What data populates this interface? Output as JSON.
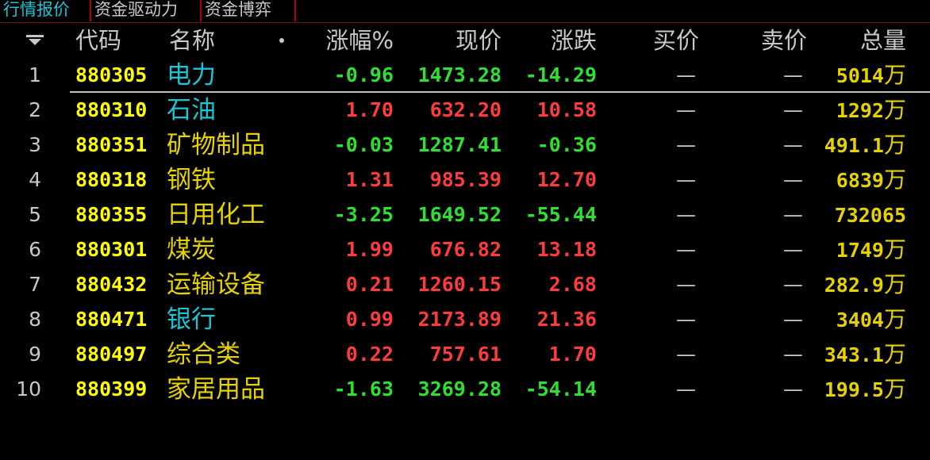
{
  "colors": {
    "up": "#ff3c3c",
    "down": "#30e030",
    "code": "#ffff00",
    "active_tab": "#19c6d6",
    "tab_border": "#b00000"
  },
  "tabs": [
    {
      "label": "行情报价",
      "active": true
    },
    {
      "label": "资金驱动力",
      "active": false
    },
    {
      "label": "资金博弈",
      "active": false
    }
  ],
  "header": {
    "sort_icon": "sort-down-icon",
    "code": "代码",
    "name": "名称",
    "pct": "涨幅%",
    "price": "现价",
    "change": "涨跌",
    "buy": "买价",
    "sell": "卖价",
    "volume": "总量"
  },
  "rows": [
    {
      "idx": "1",
      "code": "880305",
      "name": "电力",
      "name_color": "cyan",
      "pct": "-0.96",
      "price": "1473.28",
      "change": "-14.29",
      "buy": "—",
      "sell": "—",
      "vol": "5014",
      "unit": "万",
      "dir": "down",
      "selected": true
    },
    {
      "idx": "2",
      "code": "880310",
      "name": "石油",
      "name_color": "cyan",
      "pct": "1.70",
      "price": "632.20",
      "change": "10.58",
      "buy": "—",
      "sell": "—",
      "vol": "1292",
      "unit": "万",
      "dir": "up"
    },
    {
      "idx": "3",
      "code": "880351",
      "name": "矿物制品",
      "name_color": "yellow",
      "pct": "-0.03",
      "price": "1287.41",
      "change": "-0.36",
      "buy": "—",
      "sell": "—",
      "vol": "491.1",
      "unit": "万",
      "dir": "down"
    },
    {
      "idx": "4",
      "code": "880318",
      "name": "钢铁",
      "name_color": "yellow",
      "pct": "1.31",
      "price": "985.39",
      "change": "12.70",
      "buy": "—",
      "sell": "—",
      "vol": "6839",
      "unit": "万",
      "dir": "up"
    },
    {
      "idx": "5",
      "code": "880355",
      "name": "日用化工",
      "name_color": "yellow",
      "pct": "-3.25",
      "price": "1649.52",
      "change": "-55.44",
      "buy": "—",
      "sell": "—",
      "vol": "732065",
      "unit": "",
      "dir": "down"
    },
    {
      "idx": "6",
      "code": "880301",
      "name": "煤炭",
      "name_color": "yellow",
      "pct": "1.99",
      "price": "676.82",
      "change": "13.18",
      "buy": "—",
      "sell": "—",
      "vol": "1749",
      "unit": "万",
      "dir": "up"
    },
    {
      "idx": "7",
      "code": "880432",
      "name": "运输设备",
      "name_color": "yellow",
      "pct": "0.21",
      "price": "1260.15",
      "change": "2.68",
      "buy": "—",
      "sell": "—",
      "vol": "282.9",
      "unit": "万",
      "dir": "up"
    },
    {
      "idx": "8",
      "code": "880471",
      "name": "银行",
      "name_color": "cyan",
      "pct": "0.99",
      "price": "2173.89",
      "change": "21.36",
      "buy": "—",
      "sell": "—",
      "vol": "3404",
      "unit": "万",
      "dir": "up"
    },
    {
      "idx": "9",
      "code": "880497",
      "name": "综合类",
      "name_color": "yellow",
      "pct": "0.22",
      "price": "757.61",
      "change": "1.70",
      "buy": "—",
      "sell": "—",
      "vol": "343.1",
      "unit": "万",
      "dir": "up"
    },
    {
      "idx": "10",
      "code": "880399",
      "name": "家居用品",
      "name_color": "yellow",
      "pct": "-1.63",
      "price": "3269.28",
      "change": "-54.14",
      "buy": "—",
      "sell": "—",
      "vol": "199.5",
      "unit": "万",
      "dir": "down"
    }
  ]
}
